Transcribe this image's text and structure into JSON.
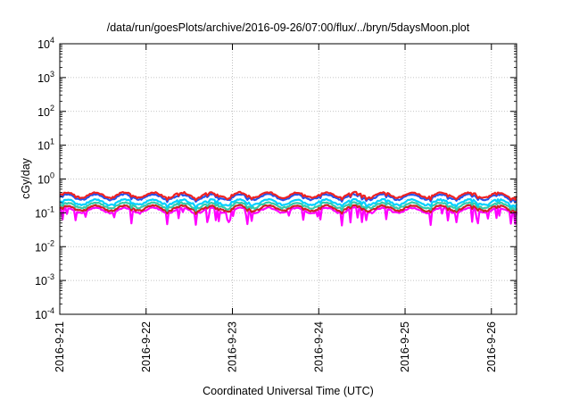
{
  "chart_data": {
    "type": "line",
    "title": "/data/run/goesPlots/archive/2016-09-26/07:00/flux/../bryn/5daysMoon.plot",
    "xlabel": "Coordinated Universal Time (UTC)",
    "ylabel": "cGy/day",
    "yscale": "log",
    "grid": true,
    "ylim": [
      0.0001,
      10000
    ],
    "yticks": [
      {
        "base": "10",
        "exp": "-4",
        "value": 0.0001
      },
      {
        "base": "10",
        "exp": "-3",
        "value": 0.001
      },
      {
        "base": "10",
        "exp": "-2",
        "value": 0.01
      },
      {
        "base": "10",
        "exp": "-1",
        "value": 0.1
      },
      {
        "base": "10",
        "exp": "0",
        "value": 1
      },
      {
        "base": "10",
        "exp": "1",
        "value": 10
      },
      {
        "base": "10",
        "exp": "2",
        "value": 100
      },
      {
        "base": "10",
        "exp": "3",
        "value": 1000
      },
      {
        "base": "10",
        "exp": "4",
        "value": 10000
      }
    ],
    "xlim": [
      "2016-09-21",
      "2016-09-26T07:00"
    ],
    "xticks": [
      {
        "label": "2016-9-21",
        "date": "2016-09-21"
      },
      {
        "label": "2016-9-22",
        "date": "2016-09-22"
      },
      {
        "label": "2016-9-23",
        "date": "2016-09-23"
      },
      {
        "label": "2016-9-24",
        "date": "2016-09-24"
      },
      {
        "label": "2016-9-25",
        "date": "2016-09-25"
      },
      {
        "label": "2016-9-26",
        "date": "2016-09-26"
      }
    ],
    "series": [
      {
        "color": "#ff00ff",
        "base": 0.12
      },
      {
        "color": "#cc2222",
        "base": 0.14
      },
      {
        "color": "#33ccaa",
        "base": 0.17
      },
      {
        "color": "#00d0ff",
        "base": 0.21
      },
      {
        "color": "#2255ee",
        "base": 0.3
      },
      {
        "color": "#ee2222",
        "base": 0.34
      }
    ]
  }
}
